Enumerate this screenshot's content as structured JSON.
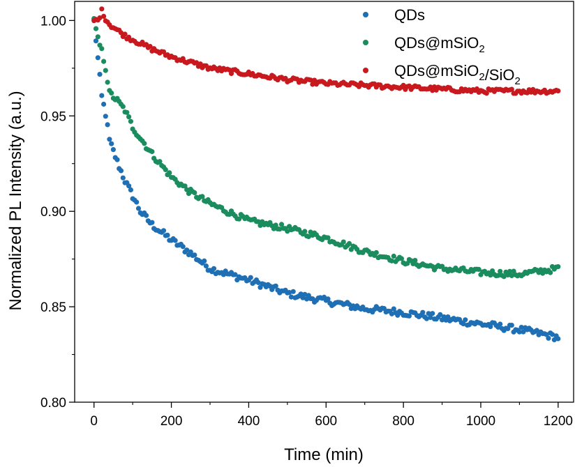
{
  "chart_data": {
    "type": "scatter",
    "title": "",
    "xlabel": "Time (min)",
    "ylabel": "Normalized PL Intensity (a.u.)",
    "xlim": [
      -50,
      1240
    ],
    "ylim": [
      0.8,
      1.01
    ],
    "xticks": [
      0,
      200,
      400,
      600,
      800,
      1000,
      1200
    ],
    "xtick_labels": [
      "0",
      "200",
      "400",
      "600",
      "800",
      "1000",
      "1200"
    ],
    "yticks": [
      0.8,
      0.85,
      0.9,
      0.95,
      1.0
    ],
    "ytick_labels": [
      "0.80",
      "0.85",
      "0.90",
      "0.95",
      "1.00"
    ],
    "legend_position": "top-right",
    "point_spacing_min": 10,
    "series": [
      {
        "name": "QDs",
        "legend_parts": [
          {
            "text": "QDs",
            "sub": ""
          }
        ],
        "color": "#1f6fb4",
        "model": {
          "kind": "double_exp",
          "base": 0.81,
          "a": 0.05,
          "tau1": 45,
          "b": 0.14,
          "tau2": 900,
          "noise": 0.0018
        },
        "points": [
          [
            0,
            1.0
          ],
          [
            10,
            0.98
          ],
          [
            20,
            0.96
          ],
          [
            30,
            0.951
          ],
          [
            40,
            0.937
          ],
          [
            60,
            0.926
          ],
          [
            80,
            0.916
          ],
          [
            100,
            0.908
          ],
          [
            120,
            0.9
          ],
          [
            150,
            0.893
          ],
          [
            200,
            0.885
          ],
          [
            250,
            0.878
          ],
          [
            300,
            0.87
          ],
          [
            400,
            0.864
          ],
          [
            500,
            0.857
          ],
          [
            600,
            0.853
          ],
          [
            700,
            0.849
          ],
          [
            800,
            0.847
          ],
          [
            900,
            0.844
          ],
          [
            1000,
            0.841
          ],
          [
            1100,
            0.838
          ],
          [
            1200,
            0.834
          ]
        ]
      },
      {
        "name": "QDs@mSiO2",
        "legend_parts": [
          {
            "text": "QDs@mSiO",
            "sub": "2"
          }
        ],
        "color": "#1a8c5e",
        "model": {
          "kind": "double_exp",
          "base": 0.835,
          "a": 0.045,
          "tau1": 50,
          "b": 0.12,
          "tau2": 700,
          "noise": 0.0016
        },
        "points": [
          [
            0,
            1.0
          ],
          [
            10,
            0.99
          ],
          [
            20,
            0.984
          ],
          [
            30,
            0.975
          ],
          [
            40,
            0.962
          ],
          [
            60,
            0.958
          ],
          [
            80,
            0.953
          ],
          [
            100,
            0.944
          ],
          [
            150,
            0.93
          ],
          [
            200,
            0.918
          ],
          [
            250,
            0.91
          ],
          [
            300,
            0.904
          ],
          [
            400,
            0.895
          ],
          [
            500,
            0.891
          ],
          [
            600,
            0.886
          ],
          [
            700,
            0.879
          ],
          [
            800,
            0.874
          ],
          [
            900,
            0.87
          ],
          [
            1000,
            0.868
          ],
          [
            1100,
            0.867
          ],
          [
            1200,
            0.87
          ]
        ]
      },
      {
        "name": "QDs@mSiO2/SiO2",
        "legend_parts": [
          {
            "text": "QDs@mSiO",
            "sub": "2"
          },
          {
            "text": "/SiO",
            "sub": "2"
          }
        ],
        "color": "#c8191f",
        "model": {
          "kind": "double_exp",
          "base": 0.955,
          "a": 0.015,
          "tau1": 60,
          "b": 0.03,
          "tau2": 500,
          "noise": 0.0012
        },
        "points": [
          [
            0,
            1.0
          ],
          [
            10,
            1.0
          ],
          [
            20,
            1.005
          ],
          [
            30,
            1.001
          ],
          [
            40,
            0.998
          ],
          [
            60,
            0.995
          ],
          [
            80,
            0.992
          ],
          [
            100,
            0.99
          ],
          [
            150,
            0.985
          ],
          [
            200,
            0.981
          ],
          [
            300,
            0.975
          ],
          [
            400,
            0.972
          ],
          [
            500,
            0.969
          ],
          [
            600,
            0.967
          ],
          [
            700,
            0.966
          ],
          [
            800,
            0.965
          ],
          [
            900,
            0.964
          ],
          [
            1000,
            0.963
          ],
          [
            1100,
            0.963
          ],
          [
            1200,
            0.963
          ]
        ]
      }
    ]
  }
}
